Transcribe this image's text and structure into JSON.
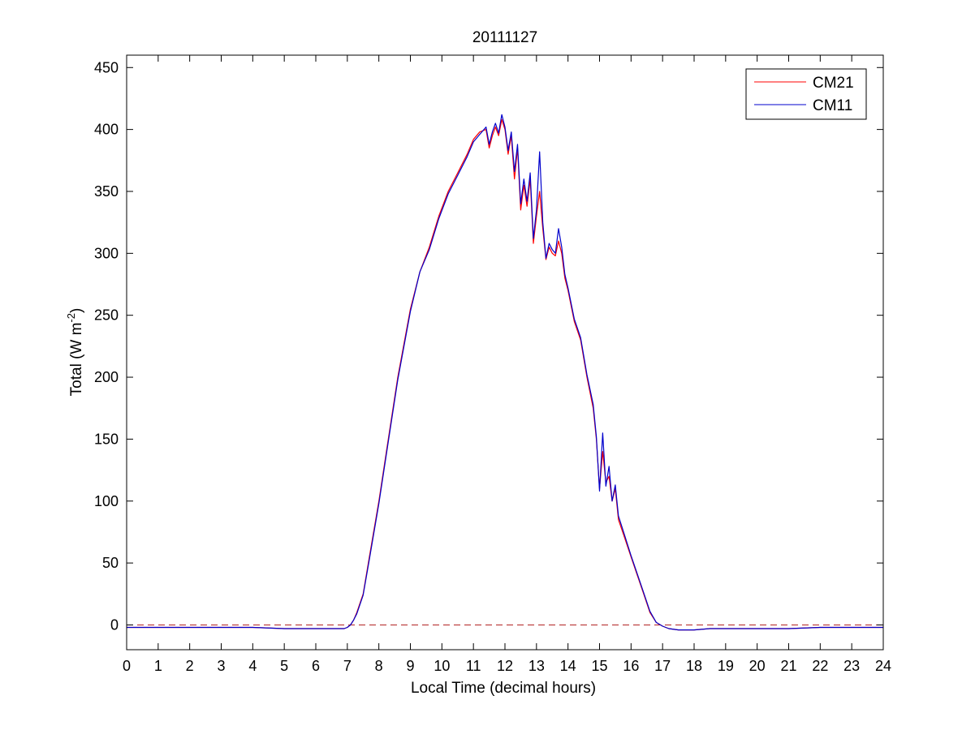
{
  "chart_data": {
    "type": "line",
    "title": "20111127",
    "xlabel": "Local Time (decimal hours)",
    "ylabel": {
      "prefix": "Total (W m",
      "superscript": "-2",
      "suffix": ")"
    },
    "xlim": [
      0,
      24
    ],
    "ylim": [
      -20,
      460
    ],
    "xticks": [
      0,
      1,
      2,
      3,
      4,
      5,
      6,
      7,
      8,
      9,
      10,
      11,
      12,
      13,
      14,
      15,
      16,
      17,
      18,
      19,
      20,
      21,
      22,
      23,
      24
    ],
    "yticks": [
      0,
      50,
      100,
      150,
      200,
      250,
      300,
      350,
      400,
      450
    ],
    "grid": false,
    "legend_position": "top-right",
    "reference_line": {
      "y": 0,
      "style": "dashed",
      "color": "#b22222"
    },
    "series": [
      {
        "name": "CM21",
        "color": "#ff0000",
        "x": [
          0,
          1,
          2,
          3,
          4,
          5,
          6,
          6.5,
          6.9,
          7.0,
          7.1,
          7.2,
          7.3,
          7.5,
          7.7,
          8.0,
          8.3,
          8.6,
          9.0,
          9.3,
          9.6,
          9.9,
          10.2,
          10.5,
          10.8,
          11.0,
          11.2,
          11.4,
          11.5,
          11.6,
          11.7,
          11.8,
          11.9,
          12.0,
          12.1,
          12.2,
          12.3,
          12.4,
          12.5,
          12.6,
          12.7,
          12.8,
          12.9,
          13.0,
          13.1,
          13.2,
          13.3,
          13.4,
          13.5,
          13.6,
          13.7,
          13.8,
          13.9,
          14.0,
          14.2,
          14.4,
          14.6,
          14.8,
          14.9,
          15.0,
          15.1,
          15.2,
          15.3,
          15.4,
          15.5,
          15.6,
          15.8,
          16.0,
          16.2,
          16.4,
          16.6,
          16.8,
          17.0,
          17.2,
          17.5,
          18.0,
          18.5,
          19.0,
          20.0,
          21.0,
          22.0,
          23.0,
          24.0
        ],
        "y": [
          -2,
          -2,
          -2,
          -2,
          -2,
          -3,
          -3,
          -3,
          -3,
          -2,
          0,
          4,
          10,
          25,
          55,
          100,
          150,
          200,
          255,
          285,
          305,
          330,
          350,
          365,
          380,
          392,
          398,
          400,
          385,
          395,
          402,
          395,
          408,
          400,
          380,
          395,
          360,
          385,
          335,
          355,
          338,
          360,
          308,
          330,
          350,
          320,
          295,
          305,
          300,
          298,
          310,
          300,
          280,
          270,
          245,
          230,
          200,
          175,
          150,
          110,
          140,
          115,
          120,
          100,
          110,
          85,
          70,
          55,
          40,
          25,
          10,
          2,
          -1,
          -3,
          -4,
          -4,
          -3,
          -3,
          -3,
          -3,
          -2,
          -2,
          -2
        ]
      },
      {
        "name": "CM11",
        "color": "#0000cc",
        "x": [
          0,
          1,
          2,
          3,
          4,
          5,
          6,
          6.5,
          6.9,
          7.0,
          7.1,
          7.2,
          7.3,
          7.5,
          7.7,
          8.0,
          8.3,
          8.6,
          9.0,
          9.3,
          9.6,
          9.9,
          10.2,
          10.5,
          10.8,
          11.0,
          11.2,
          11.4,
          11.5,
          11.6,
          11.7,
          11.8,
          11.9,
          12.0,
          12.1,
          12.2,
          12.3,
          12.4,
          12.5,
          12.6,
          12.7,
          12.8,
          12.9,
          13.0,
          13.1,
          13.2,
          13.3,
          13.4,
          13.5,
          13.6,
          13.7,
          13.8,
          13.9,
          14.0,
          14.2,
          14.4,
          14.6,
          14.8,
          14.9,
          15.0,
          15.1,
          15.2,
          15.3,
          15.4,
          15.5,
          15.6,
          15.8,
          16.0,
          16.2,
          16.4,
          16.6,
          16.8,
          17.0,
          17.2,
          17.5,
          18.0,
          18.5,
          19.0,
          20.0,
          21.0,
          22.0,
          23.0,
          24.0
        ],
        "y": [
          -2,
          -2,
          -2,
          -2,
          -2,
          -3,
          -3,
          -3,
          -3,
          -2,
          0,
          4,
          9,
          24,
          53,
          98,
          148,
          198,
          253,
          285,
          303,
          328,
          348,
          363,
          378,
          390,
          396,
          402,
          388,
          398,
          405,
          397,
          412,
          402,
          383,
          398,
          366,
          388,
          340,
          360,
          342,
          365,
          312,
          335,
          382,
          325,
          296,
          308,
          303,
          300,
          320,
          305,
          283,
          272,
          247,
          232,
          202,
          178,
          152,
          108,
          155,
          112,
          128,
          100,
          113,
          88,
          72,
          56,
          41,
          26,
          11,
          2,
          -1,
          -3,
          -4,
          -4,
          -3,
          -3,
          -3,
          -3,
          -2,
          -2,
          -2
        ]
      }
    ]
  }
}
